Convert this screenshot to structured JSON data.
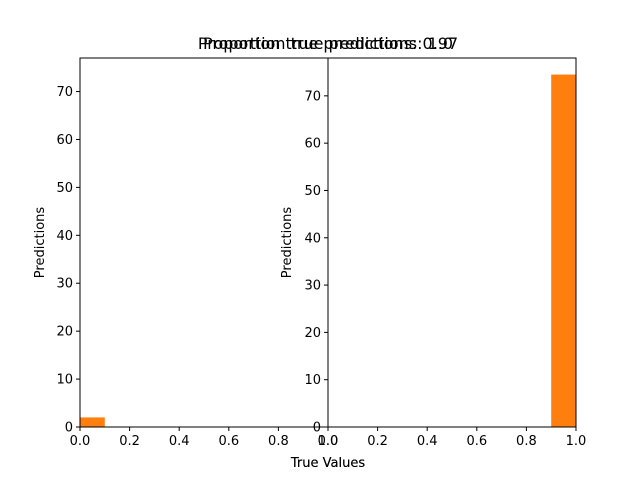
{
  "chart_data": [
    {
      "type": "bar",
      "title": "Proportion true predictions: 0.97",
      "xlabel": "True Values",
      "ylabel": "Predictions",
      "xlim": [
        0,
        1
      ],
      "ylim": [
        0,
        77
      ],
      "bars": [
        {
          "x0": 0.0,
          "x1": 0.1,
          "value": 2,
          "color": "#ff7f0e"
        }
      ],
      "xticks": [
        "0.0",
        "0.2",
        "0.4",
        "0.6",
        "0.8",
        "1.0"
      ],
      "xtick_values": [
        0,
        0.2,
        0.4,
        0.6,
        0.8,
        1.0
      ],
      "yticks": [
        "0",
        "10",
        "20",
        "30",
        "40",
        "50",
        "60",
        "70"
      ],
      "ytick_values": [
        0,
        10,
        20,
        30,
        40,
        50,
        60,
        70
      ],
      "grid": false,
      "legend": "none"
    },
    {
      "type": "bar",
      "title": "Proportion true predictions: 1.0",
      "xlabel": "True Values",
      "ylabel": "Predictions",
      "xlim": [
        0,
        1
      ],
      "ylim": [
        0,
        78
      ],
      "bars": [
        {
          "x0": 0.9,
          "x1": 1.0,
          "value": 74.5,
          "color": "#ff7f0e"
        }
      ],
      "xticks": [
        "0.0",
        "0.2",
        "0.4",
        "0.6",
        "0.8",
        "1.0"
      ],
      "xtick_values": [
        0,
        0.2,
        0.4,
        0.6,
        0.8,
        1.0
      ],
      "yticks": [
        "0",
        "10",
        "20",
        "30",
        "40",
        "50",
        "60",
        "70"
      ],
      "ytick_values": [
        0,
        10,
        20,
        30,
        40,
        50,
        60,
        70
      ],
      "grid": false,
      "legend": "none"
    }
  ]
}
